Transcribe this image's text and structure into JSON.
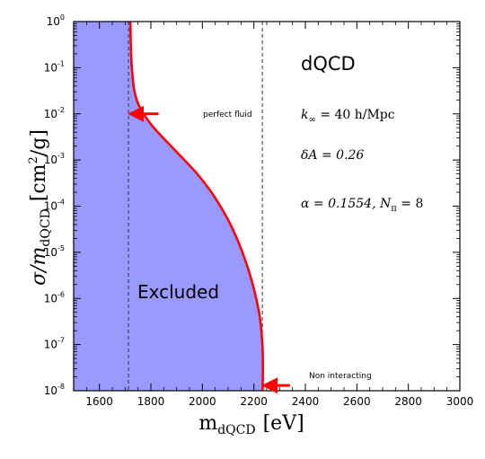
{
  "chart_data": {
    "type": "line",
    "x": {
      "label_main": "m",
      "label_sub": "dQCD",
      "label_unit": "[eV]",
      "range": [
        1500,
        3000
      ],
      "ticks": [
        1600,
        1800,
        2000,
        2200,
        2400,
        2600,
        2800,
        3000
      ],
      "tick_labels": [
        "1600",
        "1800",
        "2000",
        "2200",
        "2400",
        "2600",
        "2800",
        "3000"
      ]
    },
    "y": {
      "label_sigma": "σ/m",
      "label_sub": "dQCD",
      "label_unit": "[cm",
      "label_unit_exp": "2",
      "label_unit_tail": "/g]",
      "scale": "log",
      "range": [
        1e-08,
        1
      ],
      "tick_exponents": [
        "0",
        "-1",
        "-2",
        "-3",
        "-4",
        "-5",
        "-6",
        "-7",
        "-8"
      ],
      "tick_base": "10"
    },
    "series": [
      {
        "color": "#ff0000",
        "points": [
          [
            1720,
            1.0
          ],
          [
            1726,
            0.1
          ],
          [
            1745,
            0.02
          ],
          [
            1800,
            0.006
          ],
          [
            1900,
            0.0015
          ],
          [
            1980,
            0.0005
          ],
          [
            2050,
            0.00015
          ],
          [
            2120,
            3e-05
          ],
          [
            2180,
            4e-06
          ],
          [
            2220,
            5e-07
          ],
          [
            2233,
            1e-07
          ],
          [
            2235,
            3e-08
          ],
          [
            2234,
            1e-08
          ]
        ]
      }
    ],
    "excluded_region": {
      "label": "Excluded",
      "fill": "#9999ff"
    },
    "vlines": [
      1713,
      2233
    ],
    "annotations": {
      "title": "dQCD",
      "k_inf": "k",
      "k_inf_sub": "∞",
      "k_inf_val": " = 40 h/Mpc",
      "delta_a": "δA = 0.26",
      "alpha": "α = 0.1554, N",
      "alpha_sub": "π",
      "alpha_tail": " = 8",
      "arrow1_label": "perfect fluid",
      "arrow1_target": [
        1720,
        0.01
      ],
      "arrow1_tail": [
        1830,
        0.01
      ],
      "arrow2_label": "Non interacting",
      "arrow2_target": [
        2240,
        1.3e-08
      ],
      "arrow2_tail": [
        2340,
        1.3e-08
      ]
    },
    "grid": false
  }
}
